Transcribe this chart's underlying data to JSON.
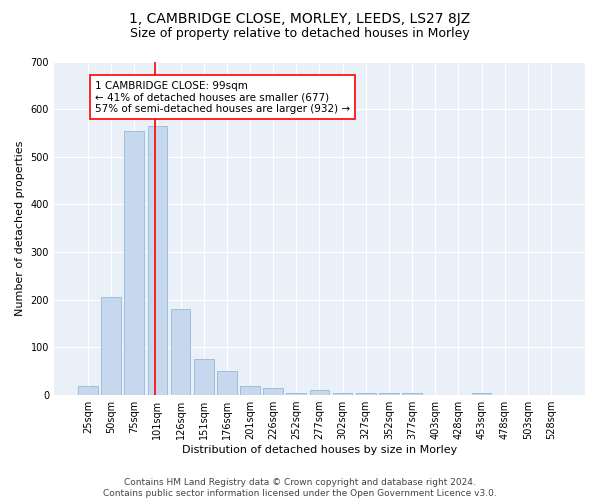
{
  "title": "1, CAMBRIDGE CLOSE, MORLEY, LEEDS, LS27 8JZ",
  "subtitle": "Size of property relative to detached houses in Morley",
  "xlabel": "Distribution of detached houses by size in Morley",
  "ylabel": "Number of detached properties",
  "footer_line1": "Contains HM Land Registry data © Crown copyright and database right 2024.",
  "footer_line2": "Contains public sector information licensed under the Open Government Licence v3.0.",
  "bar_categories": [
    "25sqm",
    "50sqm",
    "75sqm",
    "101sqm",
    "126sqm",
    "151sqm",
    "176sqm",
    "201sqm",
    "226sqm",
    "252sqm",
    "277sqm",
    "302sqm",
    "327sqm",
    "352sqm",
    "377sqm",
    "403sqm",
    "428sqm",
    "453sqm",
    "478sqm",
    "503sqm",
    "528sqm"
  ],
  "bar_values": [
    20,
    205,
    555,
    565,
    180,
    75,
    50,
    20,
    15,
    5,
    10,
    5,
    5,
    5,
    5,
    0,
    0,
    5,
    0,
    0,
    0
  ],
  "bar_color": "#c5d8ee",
  "bar_edgecolor": "#8ab0d0",
  "ylim": [
    0,
    700
  ],
  "yticks": [
    0,
    100,
    200,
    300,
    400,
    500,
    600,
    700
  ],
  "bg_color": "#eaf0f8",
  "grid_color": "#ffffff",
  "title_fontsize": 10,
  "subtitle_fontsize": 9,
  "axis_label_fontsize": 8,
  "tick_fontsize": 7,
  "annotation_fontsize": 7.5,
  "footer_fontsize": 6.5,
  "annotation_text": "1 CAMBRIDGE CLOSE: 99sqm\n← 41% of detached houses are smaller (677)\n57% of semi-detached houses are larger (932) →"
}
